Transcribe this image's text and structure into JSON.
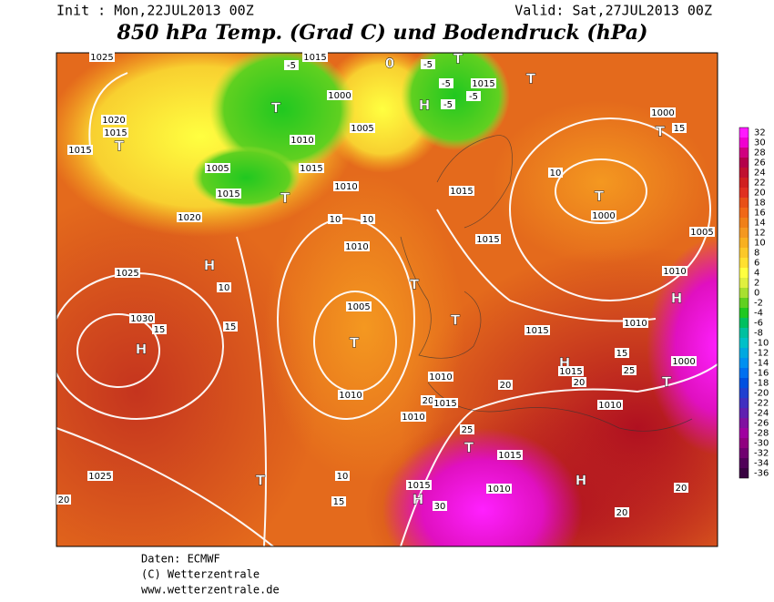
{
  "header": {
    "init": "Init : Mon,22JUL2013 00Z",
    "valid": "Valid: Sat,27JUL2013 00Z",
    "title": "850 hPa Temp. (Grad C) und Bodendruck (hPa)"
  },
  "colorbar": {
    "labels": [
      32,
      30,
      28,
      26,
      24,
      22,
      20,
      18,
      16,
      14,
      12,
      10,
      8,
      6,
      4,
      2,
      0,
      -2,
      -4,
      -6,
      -8,
      -10,
      -12,
      -14,
      -16,
      -18,
      -20,
      -22,
      -24,
      -26,
      -28,
      -30,
      -32,
      -34,
      -36
    ],
    "colors": [
      "#ff1aff",
      "#f000d0",
      "#d00080",
      "#b4004a",
      "#c01030",
      "#d02020",
      "#e03020",
      "#e85018",
      "#f06818",
      "#f08018",
      "#f49820",
      "#f8b020",
      "#fcc828",
      "#ffe030",
      "#ffff40",
      "#e0f040",
      "#a8e030",
      "#60d020",
      "#20c820",
      "#00c060",
      "#00c0a0",
      "#00c0c8",
      "#00a8e0",
      "#0090f0",
      "#0070f0",
      "#0050e0",
      "#2040d0",
      "#4030c0",
      "#6020b0",
      "#8010a0",
      "#a000a0",
      "#900080",
      "#700070",
      "#500058",
      "#380040"
    ]
  },
  "map": {
    "labels": [
      "1025",
      "1020",
      "1015",
      "T",
      "1015",
      "-5",
      "1015",
      "0",
      "-5",
      "T",
      "-5",
      "1015",
      "-5",
      "H",
      "-5",
      "T",
      "1000",
      "T",
      "1005",
      "1010",
      "1000",
      "T",
      "15",
      "1005",
      "1015",
      "1010",
      "1015",
      "T",
      "10",
      "T",
      "1000",
      "1020",
      "10",
      "10",
      "1015",
      "1015",
      "1005",
      "H",
      "1025",
      "10",
      "1010",
      "1010",
      "H",
      "1030",
      "15",
      "H",
      "15",
      "1005",
      "T",
      "T",
      "T",
      "1015",
      "1010",
      "H",
      "15",
      "1015",
      "20",
      "25",
      "1000",
      "T",
      "1010",
      "1010",
      "20",
      "1015",
      "20",
      "1010",
      "1010",
      "25",
      "T",
      "1015",
      "1025",
      "T",
      "10",
      "1015",
      "H",
      "30",
      "1010",
      "H",
      "20",
      "15",
      "20",
      "20"
    ]
  },
  "footer": {
    "lines": [
      "Daten: ECMWF",
      "(C) Wetterzentrale",
      "www.wetterzentrale.de"
    ]
  }
}
